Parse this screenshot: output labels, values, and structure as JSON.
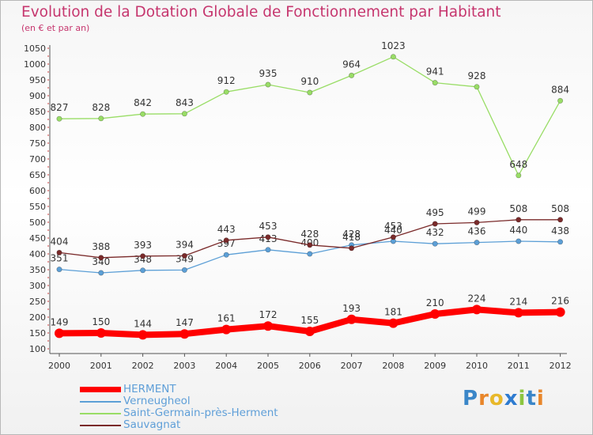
{
  "header": {
    "title": "Evolution de la Dotation Globale de Fonctionnement par Habitant",
    "subtitle": "(en € et par an)"
  },
  "logo": {
    "text": "Proxiti",
    "letters": [
      "P",
      "r",
      "o",
      "x",
      "i",
      "t",
      "i"
    ],
    "colors": [
      "#3a86c8",
      "#e8862a",
      "#e8b82a",
      "#2e7bd0",
      "#8cc63f",
      "#3a86c8",
      "#e8862a"
    ]
  },
  "chart_data": {
    "type": "line",
    "title": "Evolution de la Dotation Globale de Fonctionnement par Habitant",
    "subtitle": "(en € et par an)",
    "x": [
      "2000",
      "2001",
      "2002",
      "2003",
      "2004",
      "2005",
      "2006",
      "2007",
      "2008",
      "2009",
      "2010",
      "2011",
      "2012"
    ],
    "ylim": [
      100,
      1050
    ],
    "yticks": [
      "100",
      "150",
      "200",
      "250",
      "300",
      "350",
      "400",
      "450",
      "500",
      "550",
      "600",
      "650",
      "700",
      "750",
      "800",
      "850",
      "900",
      "950",
      "1000",
      "1050"
    ],
    "grid": false,
    "legend_position": "bottom-left",
    "series": [
      {
        "name": "HERMENT",
        "color": "#ff0000",
        "values": [
          149,
          150,
          144,
          147,
          161,
          172,
          155,
          193,
          181,
          210,
          224,
          214,
          216
        ]
      },
      {
        "name": "Verneugheol",
        "color": "#5c9fd6",
        "values": [
          351,
          340,
          348,
          349,
          397,
          413,
          400,
          428,
          440,
          432,
          436,
          440,
          438
        ]
      },
      {
        "name": "Saint-Germain-près-Herment",
        "color": "#99dd66",
        "values": [
          827,
          828,
          842,
          843,
          912,
          935,
          910,
          964,
          1023,
          941,
          928,
          648,
          884
        ]
      },
      {
        "name": "Sauvagnat",
        "color": "#7a2a2a",
        "values": [
          404,
          388,
          393,
          394,
          443,
          453,
          428,
          418,
          453,
          495,
          499,
          508,
          508
        ]
      }
    ]
  }
}
